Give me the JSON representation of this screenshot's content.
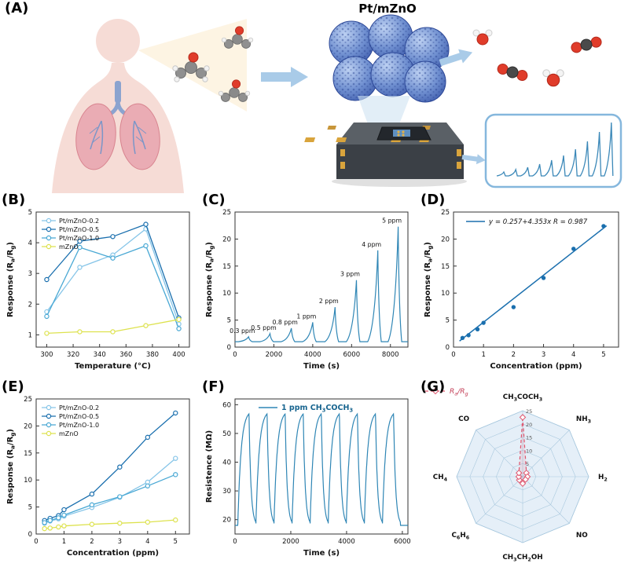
{
  "figure": {
    "panel_labels": [
      "(A)",
      "(B)",
      "(C)",
      "(D)",
      "(E)",
      "(F)",
      "(G)"
    ],
    "panelA": {
      "title": "Pt/mZnO",
      "icons": [
        "human-lungs",
        "exhaled-acetone-molecules",
        "pt-mzno-nanoparticle-cluster",
        "gas-sensor-chip",
        "co2-h2o-product-molecules",
        "response-curve-inset"
      ],
      "inset_peaks": [
        5,
        8,
        11,
        15,
        20,
        26,
        34,
        44,
        56,
        68
      ]
    }
  },
  "chart_data": [
    {
      "id": "B",
      "type": "line",
      "xlabel": "Temperature (°C)",
      "ylabel": "Response (R_{a}/R_{g})",
      "x": [
        300,
        325,
        350,
        375,
        400
      ],
      "xlim": [
        292,
        408
      ],
      "xticks": [
        300,
        320,
        340,
        360,
        380,
        400
      ],
      "ylim": [
        0.6,
        5
      ],
      "yticks": [
        1,
        2,
        3,
        4,
        5
      ],
      "legend_position": "top-left",
      "series": [
        {
          "name": "Pt/mZnO-0.2",
          "color": "#86c5e8",
          "values": [
            1.75,
            3.2,
            3.6,
            4.45,
            1.35
          ]
        },
        {
          "name": "Pt/mZnO-0.5",
          "color": "#1a6fae",
          "values": [
            2.8,
            4.05,
            4.2,
            4.6,
            1.55
          ]
        },
        {
          "name": "Pt/mZnO-1.0",
          "color": "#49a8d4",
          "values": [
            1.6,
            3.85,
            3.5,
            3.9,
            1.2
          ]
        },
        {
          "name": "mZnO",
          "color": "#dde24e",
          "values": [
            1.05,
            1.1,
            1.1,
            1.3,
            1.5
          ]
        }
      ]
    },
    {
      "id": "C",
      "type": "transient",
      "xlabel": "Time (s)",
      "ylabel": "Response (R_{a}/R_{g})",
      "xlim": [
        0,
        8900
      ],
      "xticks": [
        0,
        2000,
        4000,
        6000,
        8000
      ],
      "ylim": [
        0,
        25
      ],
      "yticks": [
        0,
        5,
        10,
        15,
        20,
        25
      ],
      "baseline": 1.0,
      "color": "#2f86b5",
      "peaks": [
        {
          "time": 700,
          "response": 1.9,
          "label": "0.3 ppm"
        },
        {
          "time": 1800,
          "response": 2.5,
          "label": "0.5 ppm"
        },
        {
          "time": 2900,
          "response": 3.5,
          "label": "0.8 ppm"
        },
        {
          "time": 4000,
          "response": 4.6,
          "label": "1 ppm"
        },
        {
          "time": 5150,
          "response": 7.4,
          "label": "2 ppm"
        },
        {
          "time": 6250,
          "response": 12.4,
          "label": "3 ppm"
        },
        {
          "time": 7350,
          "response": 17.9,
          "label": "4 ppm"
        },
        {
          "time": 8400,
          "response": 22.3,
          "label": "5 ppm"
        }
      ]
    },
    {
      "id": "D",
      "type": "scatter_fit",
      "xlabel": "Concentration (ppm)",
      "ylabel": "Response (R_{a}/R_{g})",
      "xlim": [
        0,
        5.5
      ],
      "xticks": [
        0,
        1,
        2,
        3,
        4,
        5
      ],
      "ylim": [
        0,
        25
      ],
      "yticks": [
        0,
        5,
        10,
        15,
        20,
        25
      ],
      "color": "#1a6fae",
      "points_x": [
        0.3,
        0.5,
        0.8,
        1,
        2,
        3,
        4,
        5
      ],
      "points_y": [
        1.7,
        2.2,
        3.3,
        4.5,
        7.4,
        12.8,
        18.2,
        22.4
      ],
      "fit": {
        "slope": 4.353,
        "intercept": 0.257,
        "r": 0.987,
        "x_range": [
          0.2,
          5.1
        ],
        "equation": "y = 0.257+4.353x   R = 0.987"
      }
    },
    {
      "id": "E",
      "type": "line",
      "xlabel": "Concentration (ppm)",
      "ylabel": "Response (R_{a}/R_{g})",
      "x": [
        0.3,
        0.5,
        0.8,
        1,
        2,
        3,
        4,
        5
      ],
      "xlim": [
        0,
        5.5
      ],
      "xticks": [
        0,
        1,
        2,
        3,
        4,
        5
      ],
      "ylim": [
        0,
        25
      ],
      "yticks": [
        0,
        5,
        10,
        15,
        20,
        25
      ],
      "legend_position": "top-left",
      "series": [
        {
          "name": "Pt/mZnO-0.2",
          "color": "#86c5e8",
          "values": [
            2.0,
            2.4,
            2.8,
            3.3,
            4.9,
            6.8,
            9.6,
            14.0
          ]
        },
        {
          "name": "Pt/mZnO-0.5",
          "color": "#1a6fae",
          "values": [
            2.5,
            2.9,
            3.4,
            4.5,
            7.4,
            12.4,
            17.9,
            22.4
          ]
        },
        {
          "name": "Pt/mZnO-1.0",
          "color": "#49a8d4",
          "values": [
            2.1,
            2.5,
            3.0,
            3.5,
            5.4,
            6.9,
            8.9,
            11.0
          ]
        },
        {
          "name": "mZnO",
          "color": "#dde24e",
          "values": [
            1.0,
            1.1,
            1.3,
            1.5,
            1.8,
            2.0,
            2.2,
            2.6
          ]
        }
      ]
    },
    {
      "id": "F",
      "type": "cycles",
      "legend": "1 ppm CH_{3}COCH_{3}",
      "xlabel": "Time (s)",
      "ylabel": "Resistence (MΩ)",
      "xlim": [
        0,
        6200
      ],
      "xticks": [
        0,
        2000,
        4000,
        6000
      ],
      "ylim": [
        15,
        62
      ],
      "yticks": [
        20,
        30,
        40,
        50,
        60
      ],
      "r_min": 18,
      "r_max": 58,
      "cycles": 9,
      "start": 100,
      "period": 648,
      "color": "#2f86b5"
    },
    {
      "id": "G",
      "type": "radar",
      "legend": "R_{a}/R_{g}",
      "axes": [
        "CH_{3}COCH_{3}",
        "NH_{3}",
        "H_{2}",
        "NO",
        "CH_{3}CH_{2}OH",
        "C_{6}H_{6}",
        "CH_{4}",
        "CO"
      ],
      "values": [
        22.5,
        2.0,
        1.8,
        1.5,
        2.6,
        1.8,
        1.5,
        2.0
      ],
      "rmax": 25,
      "rings": [
        5,
        10,
        15,
        20,
        25
      ],
      "color": "#e0566e",
      "legend_color": "#c23b54",
      "web_color": "#cfe2f2"
    }
  ]
}
